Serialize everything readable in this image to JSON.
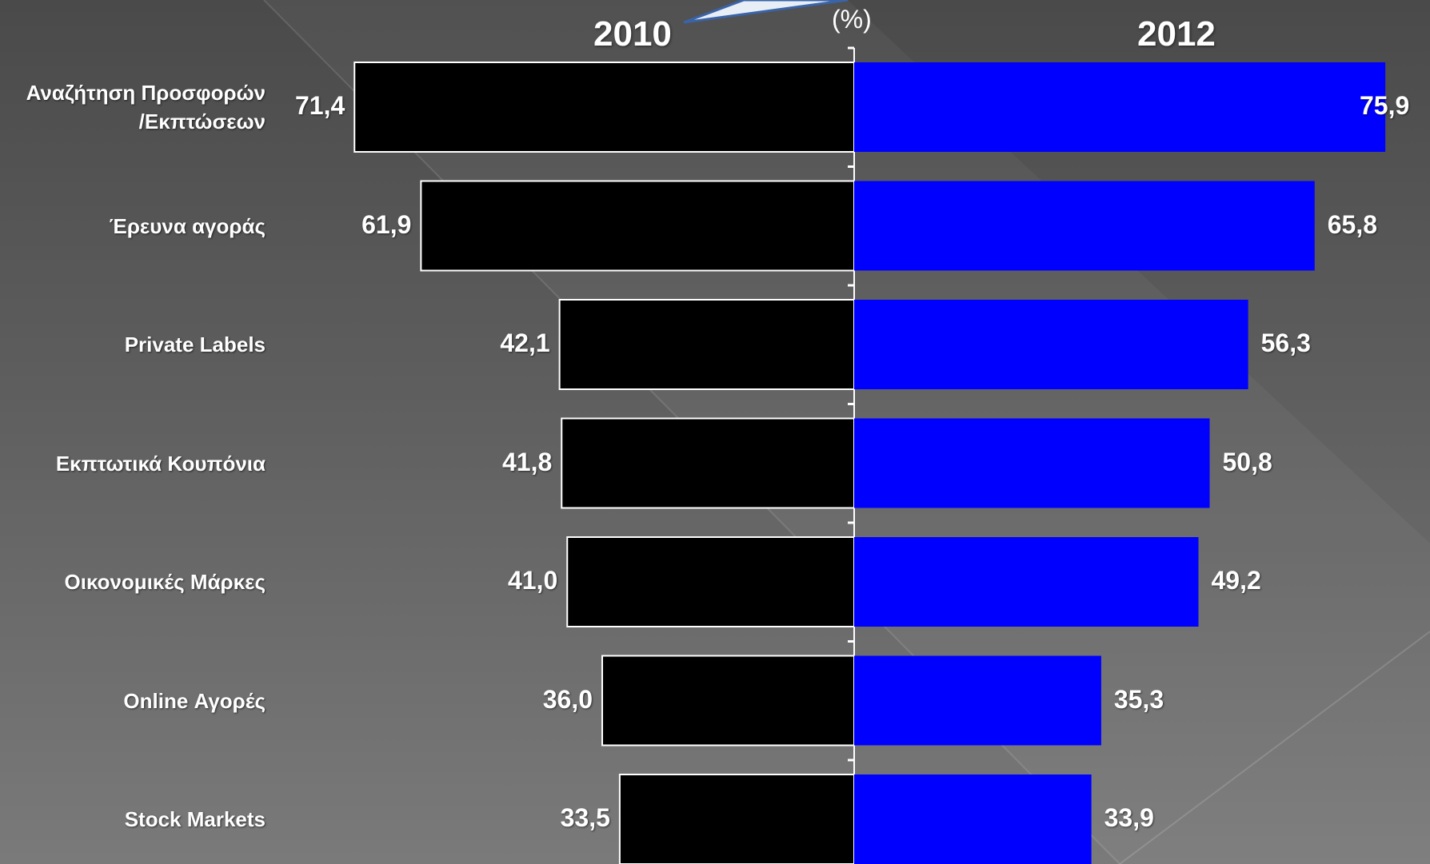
{
  "chart_data": {
    "type": "bar",
    "title": "",
    "unit": "(%)",
    "categories": [
      "Αναζήτηση Προσφορών\n/Εκπτώσεων",
      "Έρευνα αγοράς",
      "Private Labels",
      "Εκπτωτικά Κουπόνια",
      "Οικονομικές Μάρκες",
      "Online Αγορές",
      "Stock Markets"
    ],
    "value_labels_2010": [
      "71,4",
      "61,9",
      "42,1",
      "41,8",
      "41,0",
      "36,0",
      "33,5"
    ],
    "value_labels_2012": [
      "75,9",
      "65,8",
      "56,3",
      "50,8",
      "49,2",
      "35,3",
      "33,9"
    ],
    "series": [
      {
        "name": "2010",
        "values": [
          71.4,
          61.9,
          42.1,
          41.8,
          41.0,
          36.0,
          33.5
        ],
        "color": "#000000"
      },
      {
        "name": "2012",
        "values": [
          75.9,
          65.8,
          56.3,
          50.8,
          49.2,
          35.3,
          33.9
        ],
        "color": "#0000ff"
      }
    ]
  }
}
